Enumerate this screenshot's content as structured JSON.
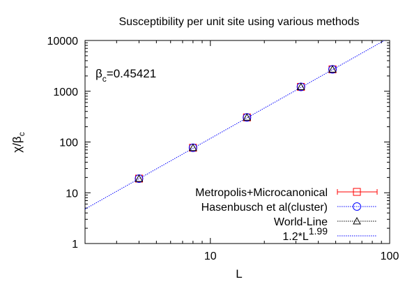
{
  "chart_data": {
    "type": "scatter",
    "title": "Susceptibility per unit site using various methods",
    "xlabel": "L",
    "ylabel": {
      "main": "χ/β",
      "sub": "c"
    },
    "xscale": "log",
    "yscale": "log",
    "xlim": [
      2,
      100
    ],
    "ylim": [
      1,
      10000
    ],
    "x_ticks": [
      10,
      100
    ],
    "y_ticks": [
      1,
      10,
      100,
      1000,
      10000
    ],
    "grid": false,
    "legend_position": "bottom-right",
    "annotation": {
      "main": "β",
      "sub": "c",
      "rest": "=0.45421"
    },
    "series": [
      {
        "name": "Metropolis+Microcanonical",
        "marker": "square",
        "color": "#ff0000",
        "line": "errorbar",
        "x": [
          4,
          8,
          16,
          32,
          48
        ],
        "y": [
          19,
          77,
          305,
          1220,
          2700
        ]
      },
      {
        "name": "Hasenbusch et al(cluster)",
        "marker": "circle",
        "color": "#0000ff",
        "line": "dotted",
        "x": [
          4,
          8,
          16,
          32,
          48
        ],
        "y": [
          19,
          77,
          305,
          1220,
          2700
        ]
      },
      {
        "name": "World-Line",
        "marker": "triangle",
        "color": "#000000",
        "line": "dotted",
        "x": [
          4,
          8,
          16,
          32,
          48
        ],
        "y": [
          19,
          77,
          305,
          1220,
          2700
        ]
      }
    ],
    "fit": {
      "name": "1.2*L",
      "exponent_label": "1.99",
      "a": 1.2,
      "b": 1.99,
      "color": "#0000ff"
    }
  }
}
